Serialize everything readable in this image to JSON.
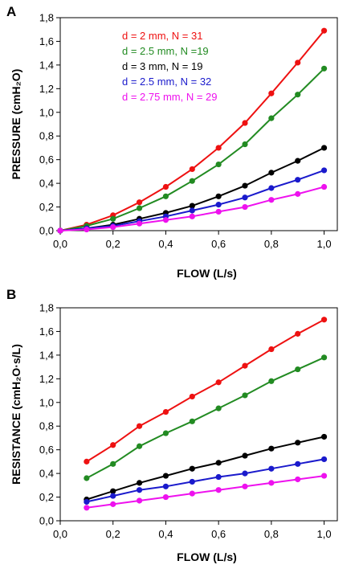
{
  "chart_data": [
    {
      "panel_label": "A",
      "type": "line",
      "xlabel": "FLOW  (L/s)",
      "ylabel": "PRESSURE  (cmH₂O)",
      "xlim": [
        0,
        1.05
      ],
      "ylim": [
        0,
        1.8
      ],
      "xticks": [
        "0,0",
        "0,2",
        "0,4",
        "0,6",
        "0,8",
        "1,0"
      ],
      "xtick_values": [
        0,
        0.2,
        0.4,
        0.6,
        0.8,
        1.0
      ],
      "yticks": [
        "0,0",
        "0,2",
        "0,4",
        "0,6",
        "0,8",
        "1,0",
        "1,2",
        "1,4",
        "1,6",
        "1,8"
      ],
      "ytick_values": [
        0,
        0.2,
        0.4,
        0.6,
        0.8,
        1.0,
        1.2,
        1.4,
        1.6,
        1.8
      ],
      "legend_position": "top-left",
      "series": [
        {
          "name": "d = 2 mm, N = 31",
          "color": "#ee1111",
          "x": [
            0,
            0.1,
            0.2,
            0.3,
            0.4,
            0.5,
            0.6,
            0.7,
            0.8,
            0.9,
            1.0
          ],
          "y": [
            0,
            0.05,
            0.13,
            0.24,
            0.37,
            0.52,
            0.7,
            0.91,
            1.16,
            1.42,
            1.69
          ]
        },
        {
          "name": "d = 2.5 mm, N =19",
          "color": "#228b22",
          "x": [
            0,
            0.1,
            0.2,
            0.3,
            0.4,
            0.5,
            0.6,
            0.7,
            0.8,
            0.9,
            1.0
          ],
          "y": [
            0,
            0.04,
            0.1,
            0.19,
            0.29,
            0.42,
            0.56,
            0.73,
            0.95,
            1.15,
            1.37
          ]
        },
        {
          "name": "d = 3 mm, N = 19",
          "color": "#000000",
          "x": [
            0,
            0.1,
            0.2,
            0.3,
            0.4,
            0.5,
            0.6,
            0.7,
            0.8,
            0.9,
            1.0
          ],
          "y": [
            0,
            0.02,
            0.05,
            0.1,
            0.15,
            0.21,
            0.29,
            0.38,
            0.49,
            0.59,
            0.7
          ]
        },
        {
          "name": "d = 2.5 mm, N = 32",
          "color": "#1a1acc",
          "x": [
            0,
            0.1,
            0.2,
            0.3,
            0.4,
            0.5,
            0.6,
            0.7,
            0.8,
            0.9,
            1.0
          ],
          "y": [
            0,
            0.02,
            0.04,
            0.08,
            0.12,
            0.17,
            0.22,
            0.28,
            0.36,
            0.43,
            0.51
          ]
        },
        {
          "name": "d = 2.75 mm, N = 29",
          "color": "#ee11ee",
          "x": [
            0,
            0.1,
            0.2,
            0.3,
            0.4,
            0.5,
            0.6,
            0.7,
            0.8,
            0.9,
            1.0
          ],
          "y": [
            0,
            0.01,
            0.03,
            0.06,
            0.09,
            0.12,
            0.16,
            0.2,
            0.26,
            0.31,
            0.37
          ]
        }
      ]
    },
    {
      "panel_label": "B",
      "type": "line",
      "xlabel": "FLOW  (L/s)",
      "ylabel": "RESISTANCE  (cmH₂O·s/L)",
      "xlim": [
        0,
        1.05
      ],
      "ylim": [
        0,
        1.8
      ],
      "xticks": [
        "0,0",
        "0,2",
        "0,4",
        "0,6",
        "0,8",
        "1,0"
      ],
      "xtick_values": [
        0,
        0.2,
        0.4,
        0.6,
        0.8,
        1.0
      ],
      "yticks": [
        "0,0",
        "0,2",
        "0,4",
        "0,6",
        "0,8",
        "1,0",
        "1,2",
        "1,4",
        "1,6",
        "1,8"
      ],
      "ytick_values": [
        0,
        0.2,
        0.4,
        0.6,
        0.8,
        1.0,
        1.2,
        1.4,
        1.6,
        1.8
      ],
      "series": [
        {
          "color": "#ee1111",
          "x": [
            0.1,
            0.2,
            0.3,
            0.4,
            0.5,
            0.6,
            0.7,
            0.8,
            0.9,
            1.0
          ],
          "y": [
            0.5,
            0.64,
            0.8,
            0.92,
            1.05,
            1.17,
            1.31,
            1.45,
            1.58,
            1.7
          ]
        },
        {
          "color": "#228b22",
          "x": [
            0.1,
            0.2,
            0.3,
            0.4,
            0.5,
            0.6,
            0.7,
            0.8,
            0.9,
            1.0
          ],
          "y": [
            0.36,
            0.48,
            0.63,
            0.74,
            0.84,
            0.95,
            1.06,
            1.18,
            1.28,
            1.38
          ]
        },
        {
          "color": "#000000",
          "x": [
            0.1,
            0.2,
            0.3,
            0.4,
            0.5,
            0.6,
            0.7,
            0.8,
            0.9,
            1.0
          ],
          "y": [
            0.18,
            0.25,
            0.32,
            0.38,
            0.44,
            0.49,
            0.55,
            0.61,
            0.66,
            0.71
          ]
        },
        {
          "color": "#1a1acc",
          "x": [
            0.1,
            0.2,
            0.3,
            0.4,
            0.5,
            0.6,
            0.7,
            0.8,
            0.9,
            1.0
          ],
          "y": [
            0.16,
            0.21,
            0.26,
            0.29,
            0.33,
            0.37,
            0.4,
            0.44,
            0.48,
            0.52
          ]
        },
        {
          "color": "#ee11ee",
          "x": [
            0.1,
            0.2,
            0.3,
            0.4,
            0.5,
            0.6,
            0.7,
            0.8,
            0.9,
            1.0
          ],
          "y": [
            0.11,
            0.14,
            0.17,
            0.2,
            0.23,
            0.26,
            0.29,
            0.32,
            0.35,
            0.38
          ]
        }
      ]
    }
  ]
}
